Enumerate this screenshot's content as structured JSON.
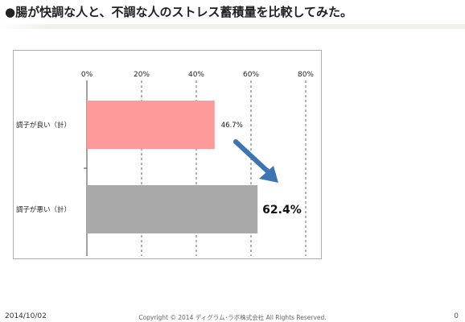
{
  "slide": {
    "title": "●腸が快調な人と、不調な人のストレス蓄積量を比較してみた。",
    "footer_date": "2014/10/02",
    "footer_copyright": "Copyright © 2014 ディグラム･ラボ株式会社 All Rights Reserved.",
    "page_number": "0"
  },
  "chart_data": {
    "type": "bar",
    "orientation": "horizontal",
    "categories": [
      "調子が良い（計）",
      "調子が悪い（計）"
    ],
    "values": [
      46.7,
      62.4
    ],
    "value_labels": [
      "46.7%",
      "62.4%"
    ],
    "x_ticks": [
      0,
      20,
      40,
      60,
      80
    ],
    "x_tick_labels": [
      "0%",
      "20%",
      "40%",
      "60%",
      "80%"
    ],
    "xlim": [
      0,
      80
    ],
    "grid": "vertical dashed",
    "title": "",
    "xlabel": "",
    "ylabel": "",
    "colors": {
      "bars": [
        "#ff9a9a",
        "#a9a9a9"
      ],
      "arrow": "#3f74b3"
    }
  }
}
